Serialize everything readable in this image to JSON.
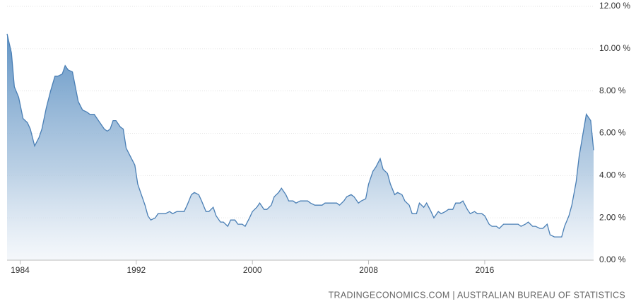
{
  "chart_data": {
    "type": "area",
    "x": [
      1983.1,
      1983.4,
      1983.6,
      1983.9,
      1984.2,
      1984.5,
      1984.7,
      1985.0,
      1985.3,
      1985.5,
      1985.8,
      1986.1,
      1986.4,
      1986.6,
      1986.9,
      1987.1,
      1987.3,
      1987.6,
      1988.0,
      1988.3,
      1988.6,
      1988.8,
      1989.1,
      1989.4,
      1989.8,
      1990.0,
      1990.2,
      1990.4,
      1990.6,
      1990.9,
      1991.1,
      1991.3,
      1991.6,
      1991.9,
      1992.1,
      1992.3,
      1992.6,
      1992.8,
      1993.0,
      1993.3,
      1993.5,
      1993.8,
      1994.0,
      1994.3,
      1994.5,
      1994.8,
      1995.0,
      1995.3,
      1995.5,
      1995.8,
      1996.0,
      1996.3,
      1996.5,
      1996.8,
      1997.0,
      1997.3,
      1997.5,
      1997.8,
      1998.0,
      1998.3,
      1998.5,
      1998.8,
      1999.0,
      1999.3,
      1999.5,
      1999.8,
      2000.0,
      2000.3,
      2000.5,
      2000.8,
      2001.0,
      2001.3,
      2001.5,
      2001.8,
      2002.0,
      2002.3,
      2002.5,
      2002.8,
      2003.0,
      2003.3,
      2003.5,
      2003.8,
      2004.0,
      2004.3,
      2004.5,
      2004.8,
      2005.0,
      2005.3,
      2005.5,
      2005.8,
      2006.0,
      2006.3,
      2006.5,
      2006.8,
      2007.0,
      2007.3,
      2007.5,
      2007.8,
      2008.0,
      2008.3,
      2008.5,
      2008.8,
      2009.0,
      2009.3,
      2009.5,
      2009.8,
      2010.0,
      2010.3,
      2010.5,
      2010.8,
      2011.0,
      2011.3,
      2011.5,
      2011.8,
      2012.0,
      2012.3,
      2012.5,
      2012.8,
      2013.0,
      2013.3,
      2013.5,
      2013.8,
      2014.0,
      2014.3,
      2014.5,
      2014.8,
      2015.0,
      2015.3,
      2015.5,
      2015.8,
      2016.0,
      2016.3,
      2016.5,
      2016.8,
      2017.0,
      2017.3,
      2017.5,
      2017.8,
      2018.0,
      2018.3,
      2018.5,
      2018.8,
      2019.0,
      2019.3,
      2019.5,
      2019.8,
      2020.0,
      2020.3,
      2020.5,
      2020.8,
      2021.0,
      2021.3,
      2021.5,
      2021.8,
      2022.0,
      2022.3,
      2022.5,
      2022.8,
      2023.0,
      2023.3,
      2023.5
    ],
    "values": [
      10.7,
      9.8,
      8.2,
      7.7,
      6.7,
      6.5,
      6.2,
      5.4,
      5.8,
      6.2,
      7.2,
      8.0,
      8.7,
      8.7,
      8.8,
      9.2,
      9.0,
      8.9,
      7.5,
      7.1,
      7.0,
      6.9,
      6.9,
      6.6,
      6.2,
      6.1,
      6.2,
      6.6,
      6.6,
      6.3,
      6.2,
      5.3,
      4.9,
      4.5,
      3.6,
      3.2,
      2.6,
      2.1,
      1.9,
      2.0,
      2.2,
      2.2,
      2.2,
      2.3,
      2.2,
      2.3,
      2.3,
      2.3,
      2.6,
      3.1,
      3.2,
      3.1,
      2.8,
      2.3,
      2.3,
      2.5,
      2.1,
      1.8,
      1.8,
      1.6,
      1.9,
      1.9,
      1.7,
      1.7,
      1.6,
      2.0,
      2.3,
      2.5,
      2.7,
      2.4,
      2.4,
      2.6,
      3.0,
      3.2,
      3.4,
      3.1,
      2.8,
      2.8,
      2.7,
      2.8,
      2.8,
      2.8,
      2.7,
      2.6,
      2.6,
      2.6,
      2.7,
      2.7,
      2.7,
      2.7,
      2.6,
      2.8,
      3.0,
      3.1,
      3.0,
      2.7,
      2.8,
      2.9,
      3.6,
      4.2,
      4.4,
      4.8,
      4.3,
      4.1,
      3.6,
      3.1,
      3.2,
      3.1,
      2.8,
      2.6,
      2.2,
      2.2,
      2.7,
      2.5,
      2.7,
      2.3,
      2.0,
      2.3,
      2.2,
      2.3,
      2.4,
      2.4,
      2.7,
      2.7,
      2.8,
      2.4,
      2.2,
      2.3,
      2.2,
      2.2,
      2.1,
      1.7,
      1.6,
      1.6,
      1.5,
      1.7,
      1.7,
      1.7,
      1.7,
      1.7,
      1.6,
      1.7,
      1.8,
      1.6,
      1.6,
      1.5,
      1.5,
      1.7,
      1.2,
      1.1,
      1.1,
      1.1,
      1.6,
      2.1,
      2.6,
      3.7,
      4.9,
      6.1,
      6.9,
      6.6,
      5.2
    ],
    "color": "#4a7fb5",
    "xlim": [
      1983.1,
      2023.5
    ],
    "xticks": [
      1984,
      1992,
      2000,
      2008,
      2016
    ],
    "ylim": [
      0,
      12
    ],
    "yticks": [
      {
        "value": 0,
        "label": "0.00 %"
      },
      {
        "value": 2,
        "label": "2.00 %"
      },
      {
        "value": 4,
        "label": "4.00 %"
      },
      {
        "value": 6,
        "label": "6.00 %"
      },
      {
        "value": 8,
        "label": "8.00 %"
      },
      {
        "value": 10,
        "label": "10.00 %"
      },
      {
        "value": 12,
        "label": "12.00 %"
      }
    ],
    "grid": true,
    "source": "TRADINGECONOMICS.COM | AUSTRALIAN BUREAU OF STATISTICS"
  }
}
